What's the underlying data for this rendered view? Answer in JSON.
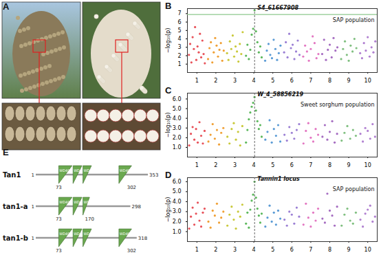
{
  "panel_A": {
    "label": "A"
  },
  "chart_data": [
    {
      "type": "scatter",
      "panel": "B",
      "population": "SAP population",
      "ylabel": "−log₁₀(p)",
      "xlim": [
        0.5,
        10.5
      ],
      "xticks": [
        1,
        2,
        3,
        4,
        5,
        6,
        7,
        8,
        9,
        10
      ],
      "ylim": [
        0,
        7.6
      ],
      "yticks": [
        1,
        2,
        3,
        4,
        5,
        6,
        7
      ],
      "threshold": {
        "value": 6.9,
        "color": "#8cc88c"
      },
      "peak": {
        "label": "S4_61667908",
        "x": 4.04,
        "value": 7.4
      },
      "series": [
        {
          "name": "1",
          "color": "#e8525a",
          "values": [
            2.1,
            3.4,
            1.2,
            4.2,
            2.8,
            5.4,
            1.5,
            3.1,
            2.4,
            4.6,
            1.8,
            3.8,
            2.2,
            1.1
          ]
        },
        {
          "name": "2",
          "color": "#f0a035",
          "values": [
            1.6,
            2.9,
            3.6,
            1.2,
            2.4,
            4.1,
            3.2,
            1.9,
            2.7,
            3.5,
            1.4,
            2.6
          ]
        },
        {
          "name": "3",
          "color": "#c9c93a",
          "values": [
            2.3,
            1.5,
            3.7,
            2.8,
            4.4,
            1.9,
            3.1,
            2.5,
            1.3,
            3.4,
            2.2,
            4.8
          ]
        },
        {
          "name": "4",
          "color": "#5cb85c",
          "values": [
            2.0,
            3.3,
            1.6,
            2.7,
            4.5,
            5.2,
            7.4,
            4.9,
            3.6,
            2.4,
            3.1,
            1.8
          ]
        },
        {
          "name": "5",
          "color": "#5b9bd5",
          "values": [
            1.4,
            2.6,
            3.4,
            2.1,
            1.7,
            3.9,
            2.8,
            1.5,
            2.3,
            3.2
          ]
        },
        {
          "name": "6",
          "color": "#9b7fd4",
          "values": [
            2.4,
            3.6,
            1.8,
            4.6,
            2.9,
            3.3,
            1.6,
            2.5,
            3.8,
            2.1
          ]
        },
        {
          "name": "7",
          "color": "#e377c2",
          "values": [
            1.9,
            3.2,
            2.5,
            1.4,
            2.8,
            4.3,
            3.5,
            1.7,
            2.2
          ]
        },
        {
          "name": "8",
          "color": "#a56cc1",
          "values": [
            2.2,
            3.9,
            1.5,
            2.7,
            3.3,
            1.8,
            4.1,
            2.6,
            3.0
          ]
        },
        {
          "name": "9",
          "color": "#7fbf7f",
          "values": [
            1.6,
            2.8,
            3.7,
            2.1,
            1.4,
            3.2,
            2.5,
            4.0,
            2.9
          ]
        },
        {
          "name": "10",
          "color": "#b07fd0",
          "values": [
            2.3,
            1.7,
            3.5,
            2.6,
            4.2,
            1.9,
            3.0,
            2.4,
            3.7
          ]
        }
      ]
    },
    {
      "type": "scatter",
      "panel": "C",
      "population": "Sweet sorghum population",
      "ylabel": "−log₁₀(p)",
      "xlim": [
        0.5,
        10.5
      ],
      "xticks": [
        1,
        2,
        3,
        4,
        5,
        6,
        7,
        8,
        9,
        10
      ],
      "ylim": [
        0,
        6.6
      ],
      "yticks": [
        1,
        2,
        3,
        4,
        5,
        6
      ],
      "peak": {
        "label": "W_4_58856219",
        "x": 4.04,
        "value": 6.2
      },
      "series": [
        {
          "name": "1",
          "color": "#e8525a",
          "values": [
            1.2,
            2.4,
            3.1,
            1.8,
            2.9,
            1.5,
            3.6,
            2.2,
            1.4,
            2.7
          ]
        },
        {
          "name": "2",
          "color": "#f0a035",
          "values": [
            1.6,
            2.3,
            3.4,
            1.9,
            2.8,
            1.3,
            2.5,
            3.0
          ]
        },
        {
          "name": "3",
          "color": "#c9c93a",
          "values": [
            2.1,
            1.4,
            2.9,
            3.5,
            1.8,
            2.6,
            1.2,
            3.2
          ]
        },
        {
          "name": "4",
          "color": "#5cb85c",
          "values": [
            1.5,
            2.8,
            3.9,
            4.6,
            5.2,
            5.6,
            6.2,
            4.8,
            3.7,
            2.9,
            3.3,
            2.1
          ]
        },
        {
          "name": "5",
          "color": "#5b9bd5",
          "values": [
            1.8,
            2.6,
            3.8,
            1.5,
            2.9,
            2.2,
            3.3,
            1.6
          ]
        },
        {
          "name": "6",
          "color": "#9b7fd4",
          "values": [
            2.3,
            1.7,
            3.1,
            2.5,
            1.9,
            2.8,
            3.4
          ]
        },
        {
          "name": "7",
          "color": "#e377c2",
          "values": [
            1.4,
            2.7,
            3.5,
            2.0,
            1.6,
            2.9,
            2.3
          ]
        },
        {
          "name": "8",
          "color": "#a56cc1",
          "values": [
            2.1,
            3.3,
            1.8,
            2.6,
            3.7,
            1.5,
            2.4
          ]
        },
        {
          "name": "9",
          "color": "#7fbf7f",
          "values": [
            1.7,
            2.5,
            3.2,
            1.9,
            2.8,
            2.2
          ]
        },
        {
          "name": "10",
          "color": "#b07fd0",
          "values": [
            2.4,
            1.6,
            3.0,
            2.7,
            1.9,
            3.4,
            2.1
          ]
        }
      ]
    },
    {
      "type": "scatter",
      "panel": "D",
      "population": "SAP population",
      "ylabel": "−log₁₀(p)",
      "xlim": [
        0.5,
        10.5
      ],
      "xticks": [
        1,
        2,
        3,
        4,
        5,
        6,
        7,
        8,
        9,
        10
      ],
      "ylim": [
        0,
        6.4
      ],
      "yticks": [
        1,
        2,
        3,
        4,
        5,
        6
      ],
      "peak": {
        "label": "Tannin1 locus",
        "x": 4.04,
        "value": 6.0
      },
      "series": [
        {
          "name": "1",
          "color": "#e8525a",
          "values": [
            1.3,
            2.5,
            3.4,
            1.7,
            2.8,
            3.9,
            2.1,
            1.5,
            2.9,
            3.3
          ]
        },
        {
          "name": "2",
          "color": "#f0a035",
          "values": [
            2.0,
            1.4,
            3.1,
            2.6,
            3.8,
            1.9,
            2.4,
            3.0
          ]
        },
        {
          "name": "3",
          "color": "#c9c93a",
          "values": [
            1.6,
            2.7,
            3.5,
            2.2,
            1.3,
            3.0,
            2.5,
            3.7
          ]
        },
        {
          "name": "4",
          "color": "#5cb85c",
          "values": [
            1.8,
            2.9,
            1.4,
            3.2,
            4.1,
            4.7,
            6.0,
            4.4,
            3.3,
            2.6,
            1.9,
            2.8
          ]
        },
        {
          "name": "5",
          "color": "#5b9bd5",
          "values": [
            1.5,
            2.4,
            3.6,
            2.0,
            2.9,
            1.7,
            3.1,
            2.3
          ]
        },
        {
          "name": "6",
          "color": "#9b7fd4",
          "values": [
            2.2,
            1.6,
            3.0,
            2.7,
            1.8,
            3.4,
            2.5
          ]
        },
        {
          "name": "7",
          "color": "#e377c2",
          "values": [
            1.7,
            3.8,
            2.4,
            1.5,
            2.9,
            2.1,
            3.3
          ]
        },
        {
          "name": "8",
          "color": "#a56cc1",
          "values": [
            2.3,
            1.9,
            4.8,
            3.1,
            2.6,
            1.6,
            3.5
          ]
        },
        {
          "name": "9",
          "color": "#7fbf7f",
          "values": [
            1.6,
            2.7,
            3.3,
            2.1,
            1.8,
            2.9
          ]
        },
        {
          "name": "10",
          "color": "#b07fd0",
          "values": [
            2.2,
            1.5,
            2.8,
            3.2,
            3.6,
            2.0,
            2.5
          ]
        }
      ]
    }
  ],
  "panel_E": {
    "label": "E",
    "domain_label": "WD40",
    "max_length": 353,
    "proteins": [
      {
        "name": "Tan1",
        "length": 353,
        "domains": [
          [
            73,
            115
          ],
          [
            118,
            146
          ],
          [
            149,
            176
          ],
          [
            262,
            302
          ]
        ],
        "printed": [
          1,
          73,
          302,
          353
        ]
      },
      {
        "name": "tan1-a",
        "length": 298,
        "domains": [
          [
            73,
            115
          ],
          [
            118,
            146
          ],
          [
            149,
            170
          ]
        ],
        "printed": [
          1,
          73,
          170,
          298
        ]
      },
      {
        "name": "tan1-b",
        "length": 318,
        "domains": [
          [
            73,
            115
          ],
          [
            118,
            146
          ],
          [
            149,
            176
          ],
          [
            262,
            302
          ]
        ],
        "printed": [
          1,
          73,
          302,
          318
        ]
      }
    ]
  }
}
